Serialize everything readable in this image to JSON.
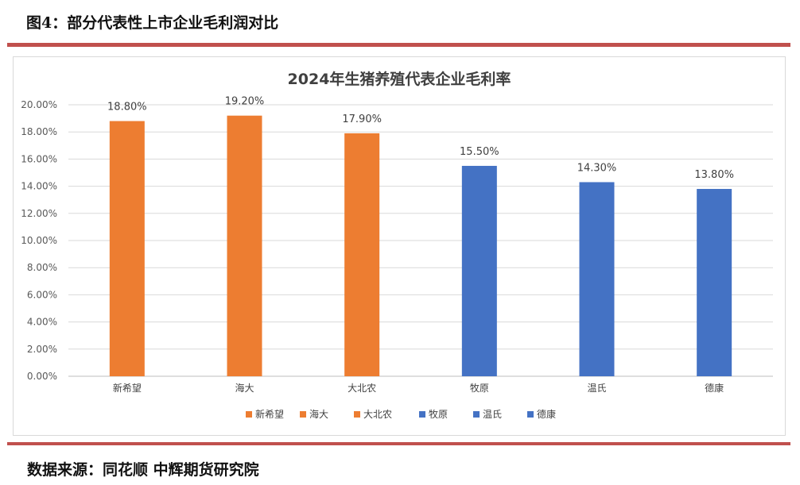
{
  "figure_title": "图4：部分代表性上市企业毛利润对比",
  "source_note": "数据来源：同花顺  中辉期货研究院",
  "colors": {
    "orange": "#ed7d31",
    "blue": "#4472c4",
    "rule": "#c0504d"
  },
  "chart_data": {
    "type": "bar",
    "title": "2024年生猪养殖代表企业毛利率",
    "categories": [
      "新希望",
      "海大",
      "大北农",
      "牧原",
      "温氏",
      "德康"
    ],
    "values": [
      18.8,
      19.2,
      17.9,
      15.5,
      14.3,
      13.8
    ],
    "value_labels": [
      "18.80%",
      "19.20%",
      "17.90%",
      "15.50%",
      "14.30%",
      "13.80%"
    ],
    "bar_colors": [
      "orange",
      "orange",
      "orange",
      "blue",
      "blue",
      "blue"
    ],
    "ylim": [
      0,
      20
    ],
    "yticks": [
      "0.00%",
      "2.00%",
      "4.00%",
      "6.00%",
      "8.00%",
      "10.00%",
      "12.00%",
      "14.00%",
      "16.00%",
      "18.00%",
      "20.00%"
    ],
    "grid": true,
    "legend": [
      "新希望",
      "海大",
      "大北农",
      "牧原",
      "温氏",
      "德康"
    ],
    "legend_position": "bottom"
  }
}
